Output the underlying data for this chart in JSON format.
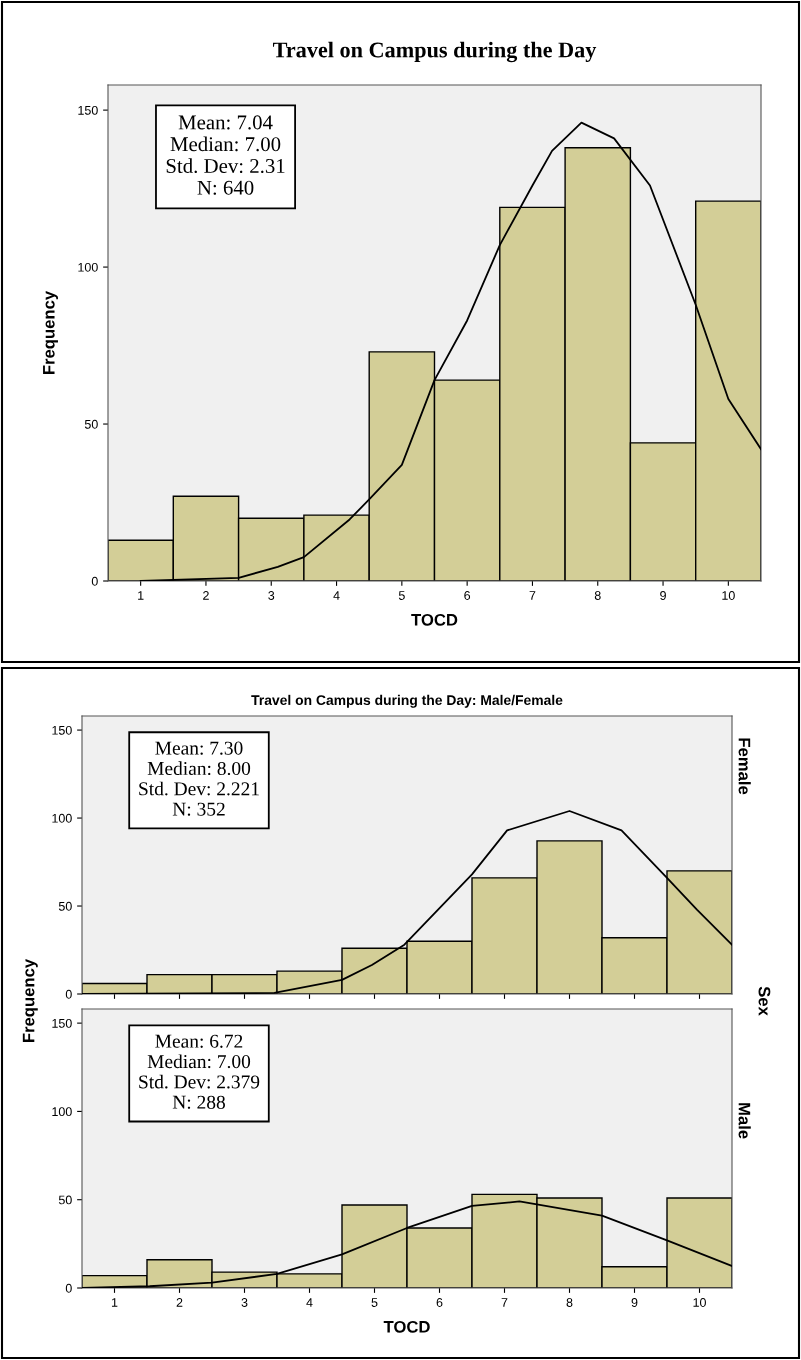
{
  "chart_data": [
    {
      "type": "histogram",
      "title": "Travel on Campus during the Day",
      "xlabel": "TOCD",
      "ylabel": "Frequency",
      "bins": [
        0.5,
        1.5,
        2.5,
        3.5,
        4.5,
        5.5,
        6.5,
        7.5,
        8.5,
        9.5,
        10.5
      ],
      "xlim": [
        0.5,
        10.5
      ],
      "xticks": [
        1,
        2,
        3,
        4,
        5,
        6,
        7,
        8,
        9,
        10
      ],
      "ylim": [
        0,
        158
      ],
      "yticks": [
        0,
        50,
        100,
        150
      ],
      "grid": false,
      "legend": false,
      "annotations": [
        "Mean: 7.04\nMedian: 7.00\nStd. Dev: 2.31\nN: 640"
      ],
      "series": [
        {
          "color": "#d3ce97",
          "values": [
            13,
            27,
            20,
            21,
            73,
            64,
            119,
            138,
            44,
            121
          ]
        },
        {
          "type": "line",
          "color": "#000000",
          "x": [
            1.0,
            2.5,
            3.1,
            3.5,
            4.2,
            4.5,
            5.0,
            5.5,
            6.0,
            6.5,
            7.0,
            7.3,
            7.75,
            8.25,
            8.8,
            9.5,
            10.0,
            10.5
          ],
          "values": [
            0,
            1,
            4.5,
            7.6,
            19.6,
            26,
            37,
            64,
            83,
            107,
            126,
            137,
            146,
            141,
            126,
            88,
            58,
            42
          ]
        }
      ]
    },
    {
      "type": "histogram",
      "title": "Travel on Campus during the Day: Male/Female",
      "bins": [
        0.5,
        1.5,
        2.5,
        3.5,
        4.5,
        5.5,
        6.5,
        7.5,
        8.5,
        9.5,
        10.5
      ],
      "xlim": [
        0.5,
        10.5
      ],
      "xticks": [
        1,
        2,
        3,
        4,
        5,
        6,
        7,
        8,
        9,
        10
      ],
      "ylim": [
        0,
        158
      ],
      "yticks": [
        0,
        50,
        100,
        150
      ],
      "grid": false,
      "legend": false,
      "tick_labels": "y",
      "annotations": [
        "Mean: 7.30\nMedian: 8.00\nStd. Dev: 2.221\nN: 352",
        "Female"
      ],
      "series": [
        {
          "color": "#d3ce97",
          "values": [
            6,
            11,
            11,
            13,
            26,
            30,
            66,
            87,
            32,
            70
          ]
        },
        {
          "type": "line",
          "color": "#000000",
          "x": [
            0.5,
            3.46,
            4.5,
            4.96,
            5.46,
            6.5,
            7.04,
            8.0,
            8.8,
            9.5,
            9.96,
            10.5
          ],
          "values": [
            0,
            0.6,
            8,
            16.5,
            28,
            68,
            93,
            104,
            93,
            66,
            48,
            28
          ]
        }
      ]
    },
    {
      "type": "histogram",
      "xlabel": "TOCD",
      "ylabel": "Frequency",
      "bins": [
        0.5,
        1.5,
        2.5,
        3.5,
        4.5,
        5.5,
        6.5,
        7.5,
        8.5,
        9.5,
        10.5
      ],
      "xlim": [
        0.5,
        10.5
      ],
      "xticks": [
        1,
        2,
        3,
        4,
        5,
        6,
        7,
        8,
        9,
        10
      ],
      "ylim": [
        0,
        158
      ],
      "yticks": [
        0,
        50,
        100,
        150
      ],
      "grid": false,
      "legend": false,
      "annotations": [
        "Mean: 6.72\nMedian: 7.00\nStd. Dev: 2.379\nN: 288",
        "Male",
        "Sex"
      ],
      "series": [
        {
          "color": "#d3ce97",
          "values": [
            7,
            16,
            9,
            8,
            47,
            34,
            53,
            51,
            12,
            51
          ]
        },
        {
          "type": "line",
          "color": "#000000",
          "x": [
            0.5,
            1.54,
            2.5,
            3.5,
            4.5,
            5.5,
            6.5,
            7.23,
            8.5,
            9.5,
            10.5
          ],
          "values": [
            0,
            1,
            3,
            8,
            19,
            34,
            46.5,
            49,
            41,
            27,
            12.5
          ]
        }
      ]
    }
  ]
}
